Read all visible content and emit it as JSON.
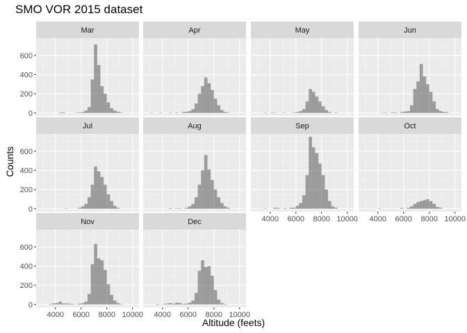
{
  "chart_data": {
    "type": "histogram",
    "title": "SMO VOR 2015 dataset",
    "xlabel": "Altitude (feets)",
    "ylabel": "Counts",
    "xlim": [
      2500,
      10500
    ],
    "ylim": [
      -30,
      780
    ],
    "xticks": [
      "4000",
      "6000",
      "8000",
      "10000"
    ],
    "yticks": [
      "0",
      "200",
      "400",
      "600"
    ],
    "bin_width": 250,
    "bar_color": "#595959",
    "panel_background": "#ebebeb",
    "strip_background": "#d9d9d9",
    "grid": true,
    "facets": [
      {
        "name": "Mar",
        "bins": [
          [
            4250,
            5
          ],
          [
            4500,
            8
          ],
          [
            5500,
            3
          ],
          [
            5750,
            5
          ],
          [
            6000,
            10
          ],
          [
            6250,
            25
          ],
          [
            6500,
            60
          ],
          [
            6750,
            350
          ],
          [
            7000,
            715
          ],
          [
            7250,
            500
          ],
          [
            7500,
            280
          ],
          [
            7750,
            200
          ],
          [
            8000,
            110
          ],
          [
            8250,
            50
          ],
          [
            8500,
            25
          ],
          [
            8750,
            12
          ],
          [
            9000,
            5
          ]
        ]
      },
      {
        "name": "Apr",
        "bins": [
          [
            3000,
            3
          ],
          [
            3750,
            3
          ],
          [
            4500,
            3
          ],
          [
            5000,
            5
          ],
          [
            5500,
            10
          ],
          [
            5750,
            12
          ],
          [
            6000,
            20
          ],
          [
            6250,
            40
          ],
          [
            6500,
            100
          ],
          [
            6750,
            200
          ],
          [
            7000,
            280
          ],
          [
            7250,
            370
          ],
          [
            7500,
            310
          ],
          [
            7750,
            240
          ],
          [
            8000,
            150
          ],
          [
            8250,
            80
          ],
          [
            8500,
            30
          ],
          [
            8750,
            10
          ],
          [
            9000,
            5
          ]
        ]
      },
      {
        "name": "May",
        "bins": [
          [
            3500,
            2
          ],
          [
            4000,
            3
          ],
          [
            4250,
            2
          ],
          [
            5000,
            3
          ],
          [
            5750,
            5
          ],
          [
            6000,
            10
          ],
          [
            6250,
            20
          ],
          [
            6500,
            40
          ],
          [
            6750,
            120
          ],
          [
            7000,
            250
          ],
          [
            7250,
            220
          ],
          [
            7500,
            170
          ],
          [
            7750,
            120
          ],
          [
            8000,
            70
          ],
          [
            8250,
            30
          ],
          [
            8500,
            10
          ],
          [
            9000,
            4
          ]
        ]
      },
      {
        "name": "Jun",
        "bins": [
          [
            4250,
            3
          ],
          [
            4500,
            3
          ],
          [
            5000,
            5
          ],
          [
            5250,
            5
          ],
          [
            5750,
            10
          ],
          [
            6000,
            15
          ],
          [
            6250,
            20
          ],
          [
            6500,
            80
          ],
          [
            6750,
            250
          ],
          [
            7000,
            330
          ],
          [
            7250,
            510
          ],
          [
            7500,
            380
          ],
          [
            7750,
            300
          ],
          [
            8000,
            220
          ],
          [
            8250,
            120
          ],
          [
            8500,
            40
          ],
          [
            8750,
            20
          ],
          [
            9000,
            10
          ],
          [
            9250,
            8
          ]
        ]
      },
      {
        "name": "Jul",
        "bins": [
          [
            4750,
            3
          ],
          [
            5750,
            10
          ],
          [
            6000,
            25
          ],
          [
            6250,
            50
          ],
          [
            6500,
            120
          ],
          [
            6750,
            250
          ],
          [
            7000,
            440
          ],
          [
            7250,
            390
          ],
          [
            7500,
            330
          ],
          [
            7750,
            250
          ],
          [
            8000,
            150
          ],
          [
            8250,
            80
          ],
          [
            8500,
            30
          ],
          [
            8750,
            10
          ]
        ]
      },
      {
        "name": "Aug",
        "bins": [
          [
            4500,
            5
          ],
          [
            5000,
            3
          ],
          [
            5250,
            3
          ],
          [
            5750,
            10
          ],
          [
            6000,
            25
          ],
          [
            6250,
            50
          ],
          [
            6500,
            120
          ],
          [
            6750,
            250
          ],
          [
            7000,
            400
          ],
          [
            7250,
            560
          ],
          [
            7500,
            410
          ],
          [
            7750,
            300
          ],
          [
            8000,
            200
          ],
          [
            8250,
            120
          ],
          [
            8500,
            60
          ],
          [
            8750,
            25
          ],
          [
            9000,
            10
          ]
        ]
      },
      {
        "name": "Sep",
        "bins": [
          [
            3500,
            3
          ],
          [
            4250,
            10
          ],
          [
            4500,
            8
          ],
          [
            5000,
            5
          ],
          [
            5500,
            10
          ],
          [
            5750,
            10
          ],
          [
            6000,
            30
          ],
          [
            6250,
            60
          ],
          [
            6500,
            140
          ],
          [
            6750,
            350
          ],
          [
            7000,
            750
          ],
          [
            7250,
            640
          ],
          [
            7500,
            580
          ],
          [
            7750,
            470
          ],
          [
            8000,
            350
          ],
          [
            8250,
            200
          ],
          [
            8500,
            80
          ],
          [
            8750,
            25
          ],
          [
            9000,
            10
          ]
        ]
      },
      {
        "name": "Oct",
        "bins": [
          [
            4000,
            3
          ],
          [
            5750,
            8
          ],
          [
            6250,
            10
          ],
          [
            6500,
            25
          ],
          [
            6750,
            50
          ],
          [
            7000,
            70
          ],
          [
            7250,
            80
          ],
          [
            7500,
            90
          ],
          [
            7750,
            100
          ],
          [
            8000,
            80
          ],
          [
            8250,
            50
          ],
          [
            8500,
            20
          ],
          [
            8750,
            10
          ]
        ]
      },
      {
        "name": "Nov",
        "bins": [
          [
            3500,
            5
          ],
          [
            3750,
            12
          ],
          [
            4000,
            15
          ],
          [
            4250,
            30
          ],
          [
            4500,
            10
          ],
          [
            4750,
            12
          ],
          [
            5000,
            8
          ],
          [
            5250,
            5
          ],
          [
            5750,
            8
          ],
          [
            6000,
            15
          ],
          [
            6250,
            30
          ],
          [
            6500,
            110
          ],
          [
            6750,
            420
          ],
          [
            7000,
            630
          ],
          [
            7250,
            480
          ],
          [
            7500,
            460
          ],
          [
            7750,
            360
          ],
          [
            8000,
            210
          ],
          [
            8250,
            100
          ],
          [
            8500,
            40
          ],
          [
            8750,
            15
          ],
          [
            9000,
            5
          ]
        ]
      },
      {
        "name": "Dec",
        "bins": [
          [
            3500,
            5
          ],
          [
            4000,
            5
          ],
          [
            4250,
            10
          ],
          [
            4500,
            15
          ],
          [
            4750,
            8
          ],
          [
            5000,
            20
          ],
          [
            5250,
            15
          ],
          [
            5500,
            5
          ],
          [
            5750,
            10
          ],
          [
            6000,
            20
          ],
          [
            6250,
            40
          ],
          [
            6500,
            120
          ],
          [
            6750,
            350
          ],
          [
            7000,
            460
          ],
          [
            7250,
            390
          ],
          [
            7500,
            400
          ],
          [
            7750,
            300
          ],
          [
            8000,
            150
          ],
          [
            8250,
            50
          ],
          [
            8500,
            15
          ],
          [
            8750,
            5
          ]
        ]
      }
    ]
  }
}
